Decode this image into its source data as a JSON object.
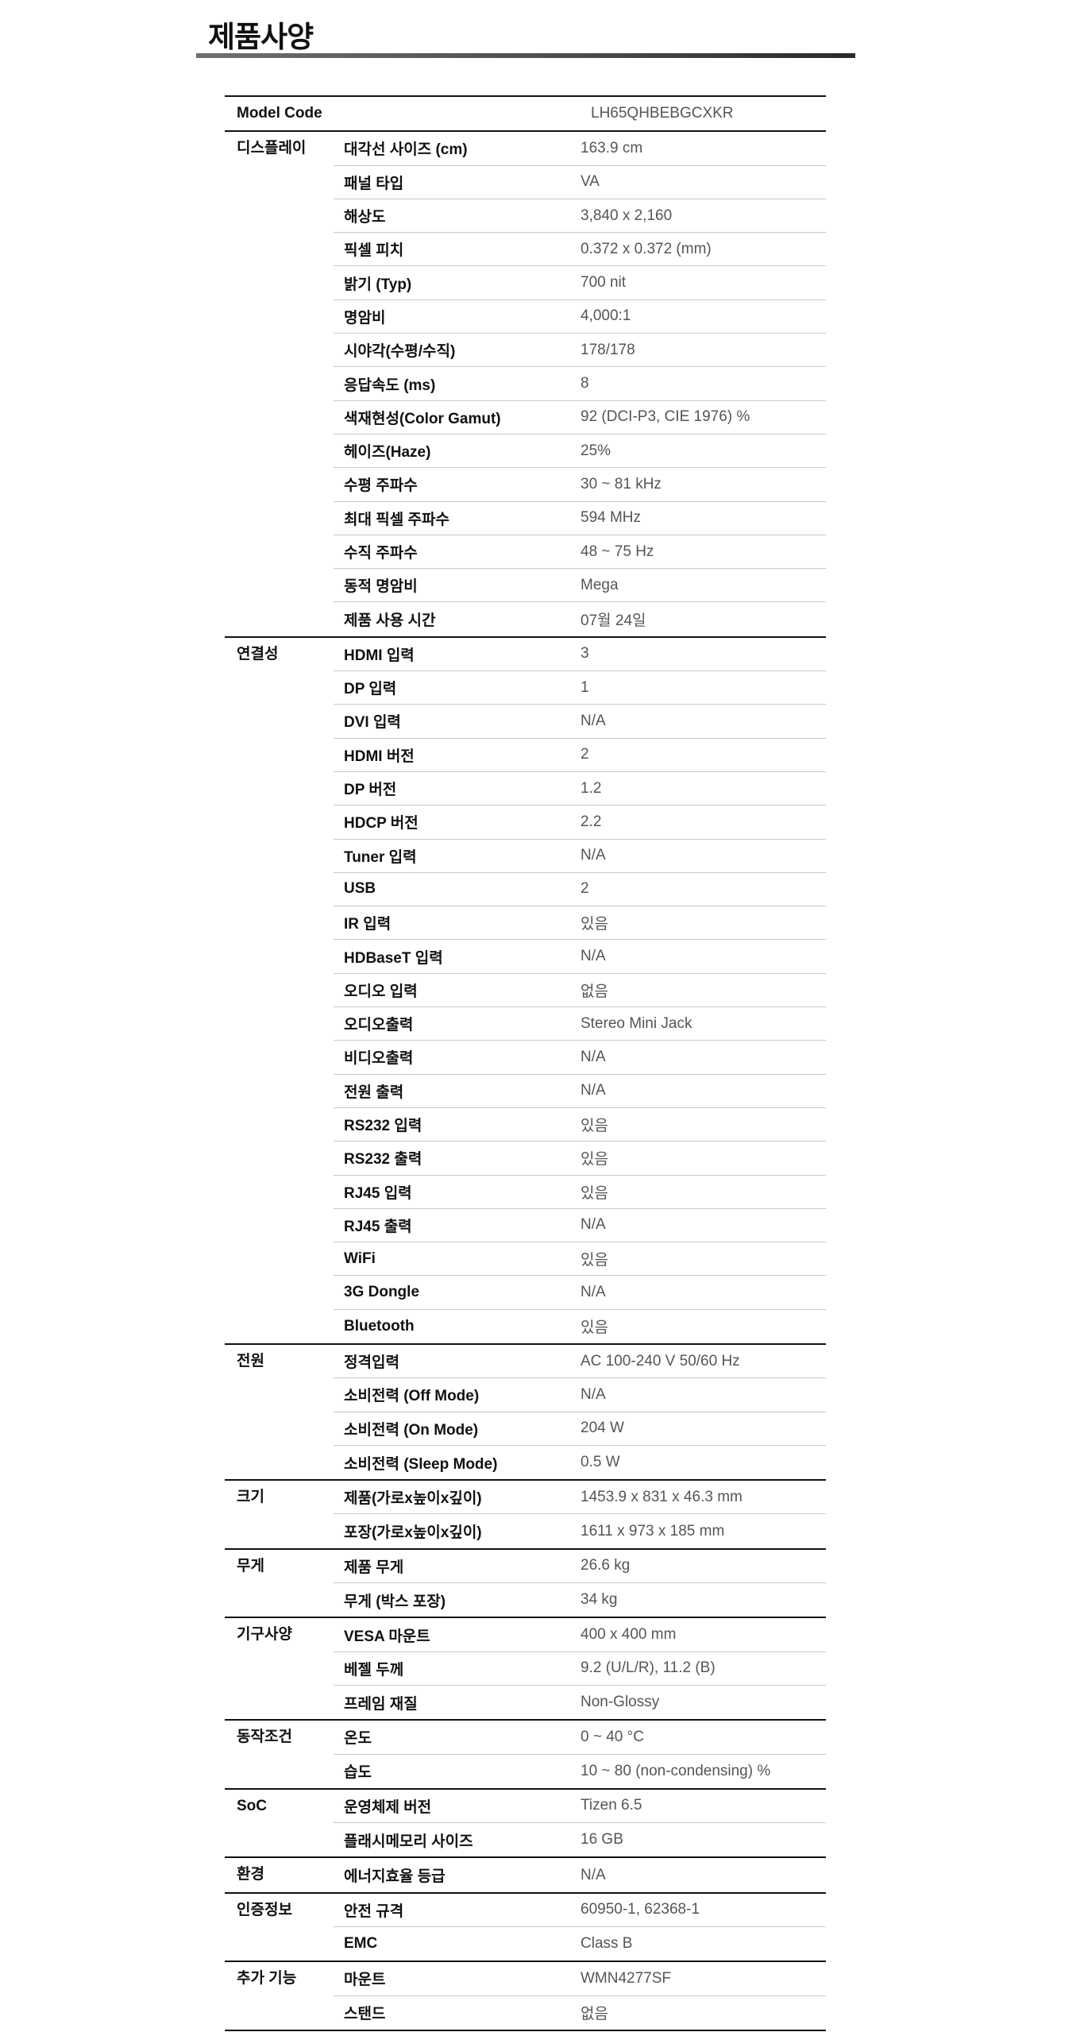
{
  "title": "제품사양",
  "model": {
    "label": "Model Code",
    "value": "LH65QHBEBGCXKR"
  },
  "groups": [
    {
      "category": "디스플레이",
      "rows": [
        {
          "label": "대각선 사이즈 (cm)",
          "value": "163.9 cm"
        },
        {
          "label": "패널 타입",
          "value": "VA"
        },
        {
          "label": "해상도",
          "value": "3,840 x 2,160"
        },
        {
          "label": "픽셀 피치",
          "value": "0.372 x 0.372 (mm)"
        },
        {
          "label": "밝기 (Typ)",
          "value": "700 nit"
        },
        {
          "label": "명암비",
          "value": "4,000:1"
        },
        {
          "label": "시야각(수평/수직)",
          "value": "178/178"
        },
        {
          "label": "응답속도 (ms)",
          "value": "8"
        },
        {
          "label": "색재현성(Color Gamut)",
          "value": "92 (DCI-P3, CIE 1976) %"
        },
        {
          "label": "헤이즈(Haze)",
          "value": "25%"
        },
        {
          "label": "수평 주파수",
          "value": "30 ~ 81 kHz"
        },
        {
          "label": "최대 픽셀 주파수",
          "value": "594 MHz"
        },
        {
          "label": "수직 주파수",
          "value": "48 ~ 75 Hz"
        },
        {
          "label": "동적 명암비",
          "value": "Mega"
        },
        {
          "label": "제품 사용 시간",
          "value": "07월 24일"
        }
      ]
    },
    {
      "category": "연결성",
      "rows": [
        {
          "label": "HDMI 입력",
          "value": "3"
        },
        {
          "label": "DP 입력",
          "value": "1"
        },
        {
          "label": "DVI 입력",
          "value": "N/A"
        },
        {
          "label": "HDMI 버전",
          "value": "2"
        },
        {
          "label": "DP 버전",
          "value": "1.2"
        },
        {
          "label": "HDCP 버전",
          "value": "2.2"
        },
        {
          "label": "Tuner 입력",
          "value": "N/A"
        },
        {
          "label": "USB",
          "value": "2"
        },
        {
          "label": "IR 입력",
          "value": "있음"
        },
        {
          "label": "HDBaseT 입력",
          "value": "N/A"
        },
        {
          "label": "오디오 입력",
          "value": "없음"
        },
        {
          "label": "오디오출력",
          "value": "Stereo Mini Jack"
        },
        {
          "label": "비디오출력",
          "value": "N/A"
        },
        {
          "label": "전원 출력",
          "value": "N/A"
        },
        {
          "label": "RS232 입력",
          "value": "있음"
        },
        {
          "label": "RS232 출력",
          "value": "있음"
        },
        {
          "label": "RJ45 입력",
          "value": "있음"
        },
        {
          "label": "RJ45 출력",
          "value": "N/A"
        },
        {
          "label": "WiFi",
          "value": "있음"
        },
        {
          "label": "3G Dongle",
          "value": "N/A"
        },
        {
          "label": "Bluetooth",
          "value": "있음"
        }
      ]
    },
    {
      "category": "전원",
      "rows": [
        {
          "label": "정격입력",
          "value": "AC 100-240 V 50/60 Hz"
        },
        {
          "label": "소비전력 (Off Mode)",
          "value": "N/A"
        },
        {
          "label": "소비전력 (On Mode)",
          "value": "204 W"
        },
        {
          "label": "소비전력 (Sleep Mode)",
          "value": "0.5 W"
        }
      ]
    },
    {
      "category": "크기",
      "rows": [
        {
          "label": "제품(가로x높이x깊이)",
          "value": "1453.9 x 831 x 46.3 mm"
        },
        {
          "label": "포장(가로x높이x깊이)",
          "value": "1611 x 973 x 185 mm"
        }
      ]
    },
    {
      "category": "무게",
      "rows": [
        {
          "label": "제품 무게",
          "value": "26.6 kg"
        },
        {
          "label": "무게 (박스 포장)",
          "value": "34 kg"
        }
      ]
    },
    {
      "category": "기구사양",
      "rows": [
        {
          "label": "VESA 마운트",
          "value": "400 x 400 mm"
        },
        {
          "label": "베젤 두께",
          "value": "9.2 (U/L/R), 11.2 (B)"
        },
        {
          "label": "프레임 재질",
          "value": "Non-Glossy"
        }
      ]
    },
    {
      "category": "동작조건",
      "rows": [
        {
          "label": "온도",
          "value": "0 ~ 40 °C"
        },
        {
          "label": "습도",
          "value": "10 ~ 80 (non-condensing) %"
        }
      ]
    },
    {
      "category": "SoC",
      "rows": [
        {
          "label": "운영체제 버전",
          "value": "Tizen 6.5"
        },
        {
          "label": "플래시메모리 사이즈",
          "value": "16 GB"
        }
      ]
    },
    {
      "category": "환경",
      "rows": [
        {
          "label": "에너지효율 등급",
          "value": "N/A"
        }
      ]
    },
    {
      "category": "인증정보",
      "rows": [
        {
          "label": "안전 규격",
          "value": "60950-1, 62368-1"
        },
        {
          "label": "EMC",
          "value": "Class B"
        }
      ]
    },
    {
      "category": "추가 기능",
      "rows": [
        {
          "label": "마운트",
          "value": "WMN4277SF"
        },
        {
          "label": "스탠드",
          "value": "없음"
        }
      ]
    }
  ]
}
